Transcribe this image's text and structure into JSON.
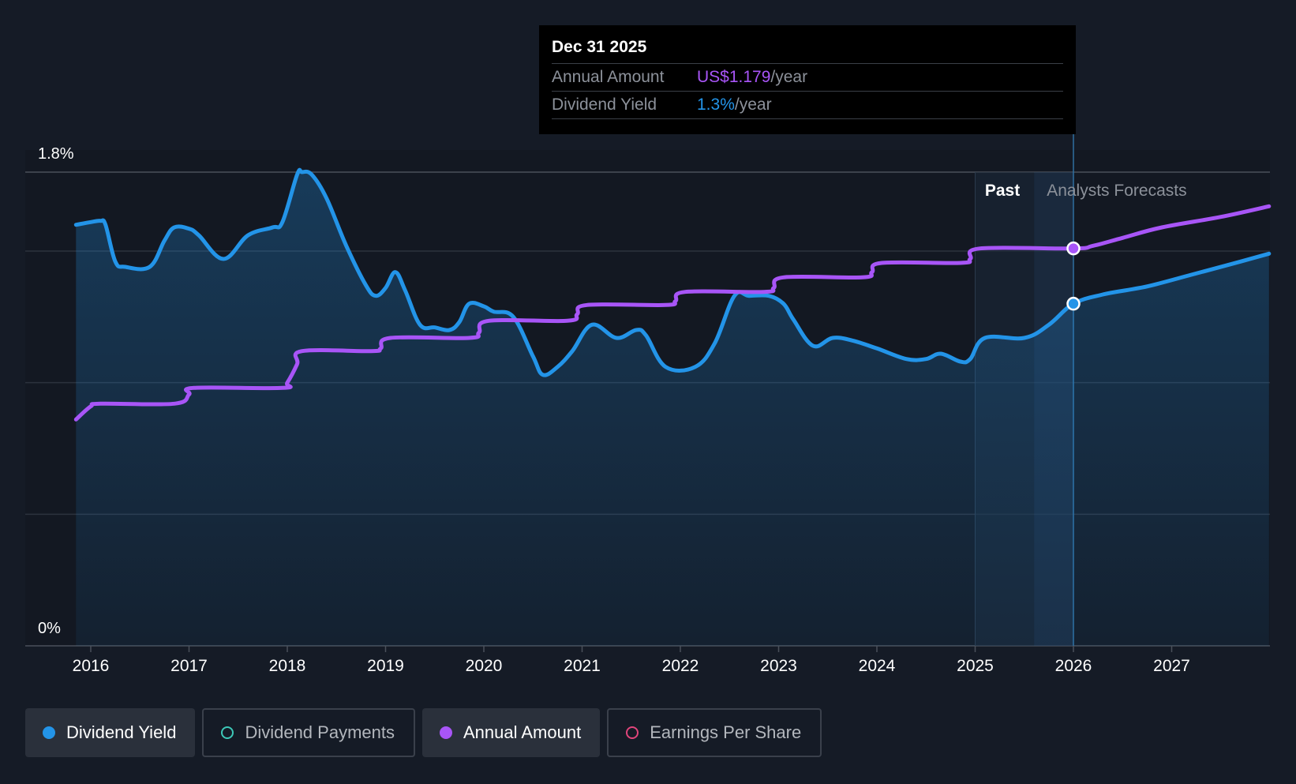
{
  "chart_data": {
    "type": "line",
    "y_axis": {
      "min": 0,
      "max": 1.8,
      "unit": "%",
      "labels": [
        {
          "value": 1.8,
          "text": "1.8%"
        },
        {
          "value": 0,
          "text": "0%"
        }
      ],
      "gridlines": [
        1.8,
        1.5,
        1.0,
        0.5
      ]
    },
    "x_axis": {
      "min": 2015.4,
      "max": 2027.99,
      "ticks": [
        {
          "value": 2016,
          "label": "2016"
        },
        {
          "value": 2017,
          "label": "2017"
        },
        {
          "value": 2018,
          "label": "2018"
        },
        {
          "value": 2019,
          "label": "2019"
        },
        {
          "value": 2020,
          "label": "2020"
        },
        {
          "value": 2021,
          "label": "2021"
        },
        {
          "value": 2022,
          "label": "2022"
        },
        {
          "value": 2023,
          "label": "2023"
        },
        {
          "value": 2024,
          "label": "2024"
        },
        {
          "value": 2025,
          "label": "2025"
        },
        {
          "value": 2026,
          "label": "2026"
        },
        {
          "value": 2027,
          "label": "2027"
        }
      ]
    },
    "regions": {
      "past": {
        "label": "Past",
        "start": 2025.0,
        "end": 2025.6
      },
      "forecast": {
        "label": "Analysts Forecasts",
        "start": 2025.6,
        "end": 2026.0
      }
    },
    "series": [
      {
        "name": "Dividend Yield",
        "color": "#2394e8",
        "area": true,
        "points": [
          [
            2015.85,
            1.6
          ],
          [
            2016.0,
            1.61
          ],
          [
            2016.1,
            1.615
          ],
          [
            2016.15,
            1.6
          ],
          [
            2016.25,
            1.46
          ],
          [
            2016.35,
            1.44
          ],
          [
            2016.6,
            1.44
          ],
          [
            2016.75,
            1.54
          ],
          [
            2016.85,
            1.59
          ],
          [
            2017.0,
            1.585
          ],
          [
            2017.1,
            1.56
          ],
          [
            2017.35,
            1.47
          ],
          [
            2017.6,
            1.56
          ],
          [
            2017.85,
            1.59
          ],
          [
            2017.95,
            1.61
          ],
          [
            2018.1,
            1.79
          ],
          [
            2018.15,
            1.8
          ],
          [
            2018.25,
            1.79
          ],
          [
            2018.4,
            1.7
          ],
          [
            2018.6,
            1.52
          ],
          [
            2018.8,
            1.37
          ],
          [
            2018.9,
            1.33
          ],
          [
            2019.0,
            1.36
          ],
          [
            2019.1,
            1.42
          ],
          [
            2019.2,
            1.35
          ],
          [
            2019.35,
            1.22
          ],
          [
            2019.5,
            1.21
          ],
          [
            2019.65,
            1.2
          ],
          [
            2019.75,
            1.23
          ],
          [
            2019.85,
            1.3
          ],
          [
            2020.0,
            1.29
          ],
          [
            2020.1,
            1.27
          ],
          [
            2020.3,
            1.25
          ],
          [
            2020.5,
            1.1
          ],
          [
            2020.6,
            1.03
          ],
          [
            2020.75,
            1.06
          ],
          [
            2020.9,
            1.12
          ],
          [
            2021.1,
            1.22
          ],
          [
            2021.35,
            1.17
          ],
          [
            2021.55,
            1.2
          ],
          [
            2021.65,
            1.18
          ],
          [
            2021.85,
            1.06
          ],
          [
            2022.15,
            1.06
          ],
          [
            2022.35,
            1.15
          ],
          [
            2022.55,
            1.33
          ],
          [
            2022.7,
            1.33
          ],
          [
            2022.9,
            1.33
          ],
          [
            2023.05,
            1.3
          ],
          [
            2023.15,
            1.24
          ],
          [
            2023.35,
            1.14
          ],
          [
            2023.55,
            1.17
          ],
          [
            2023.75,
            1.16
          ],
          [
            2024.0,
            1.13
          ],
          [
            2024.3,
            1.09
          ],
          [
            2024.5,
            1.09
          ],
          [
            2024.65,
            1.11
          ],
          [
            2024.85,
            1.08
          ],
          [
            2024.95,
            1.09
          ],
          [
            2025.1,
            1.17
          ],
          [
            2025.5,
            1.17
          ],
          [
            2025.75,
            1.22
          ],
          [
            2026.0,
            1.3
          ],
          [
            2026.3,
            1.335
          ],
          [
            2026.6,
            1.355
          ],
          [
            2026.8,
            1.37
          ],
          [
            2027.2,
            1.41
          ],
          [
            2027.6,
            1.45
          ],
          [
            2027.99,
            1.49
          ]
        ]
      },
      {
        "name": "Annual Amount",
        "color": "#a855f7",
        "area": false,
        "points": [
          [
            2015.85,
            0.86
          ],
          [
            2016.0,
            0.91
          ],
          [
            2016.1,
            0.92
          ],
          [
            2016.85,
            0.92
          ],
          [
            2017.0,
            0.955
          ],
          [
            2017.05,
            0.98
          ],
          [
            2017.95,
            0.98
          ],
          [
            2018.0,
            1.0
          ],
          [
            2018.1,
            1.07
          ],
          [
            2018.15,
            1.12
          ],
          [
            2018.85,
            1.12
          ],
          [
            2018.95,
            1.13
          ],
          [
            2019.05,
            1.17
          ],
          [
            2019.85,
            1.17
          ],
          [
            2019.95,
            1.19
          ],
          [
            2020.05,
            1.235
          ],
          [
            2020.85,
            1.235
          ],
          [
            2020.95,
            1.26
          ],
          [
            2021.05,
            1.295
          ],
          [
            2021.85,
            1.295
          ],
          [
            2021.95,
            1.31
          ],
          [
            2022.05,
            1.345
          ],
          [
            2022.85,
            1.345
          ],
          [
            2022.95,
            1.36
          ],
          [
            2023.05,
            1.4
          ],
          [
            2023.85,
            1.4
          ],
          [
            2023.95,
            1.42
          ],
          [
            2024.05,
            1.455
          ],
          [
            2024.85,
            1.455
          ],
          [
            2024.95,
            1.47
          ],
          [
            2025.05,
            1.51
          ],
          [
            2026.0,
            1.51
          ],
          [
            2026.2,
            1.52
          ],
          [
            2026.5,
            1.55
          ],
          [
            2026.9,
            1.59
          ],
          [
            2027.5,
            1.63
          ],
          [
            2027.99,
            1.67
          ]
        ]
      }
    ],
    "highlight": {
      "x": 2026.0,
      "points": [
        {
          "series": "Annual Amount",
          "value": 1.51,
          "color": "#a855f7"
        },
        {
          "series": "Dividend Yield",
          "value": 1.3,
          "color": "#2394e8"
        }
      ]
    }
  },
  "tooltip": {
    "date": "Dec 31 2025",
    "rows": [
      {
        "label": "Annual Amount",
        "value": "US$1.179",
        "unit": "/year",
        "color": "#a855f7"
      },
      {
        "label": "Dividend Yield",
        "value": "1.3%",
        "unit": "/year",
        "color": "#2394e8"
      }
    ]
  },
  "legend": [
    {
      "label": "Dividend Yield",
      "color": "#2394e8",
      "active": true,
      "filled": true
    },
    {
      "label": "Dividend Payments",
      "color": "#3dc8b8",
      "active": false,
      "filled": false
    },
    {
      "label": "Annual Amount",
      "color": "#a855f7",
      "active": true,
      "filled": true
    },
    {
      "label": "Earnings Per Share",
      "color": "#e0457b",
      "active": false,
      "filled": false
    }
  ]
}
